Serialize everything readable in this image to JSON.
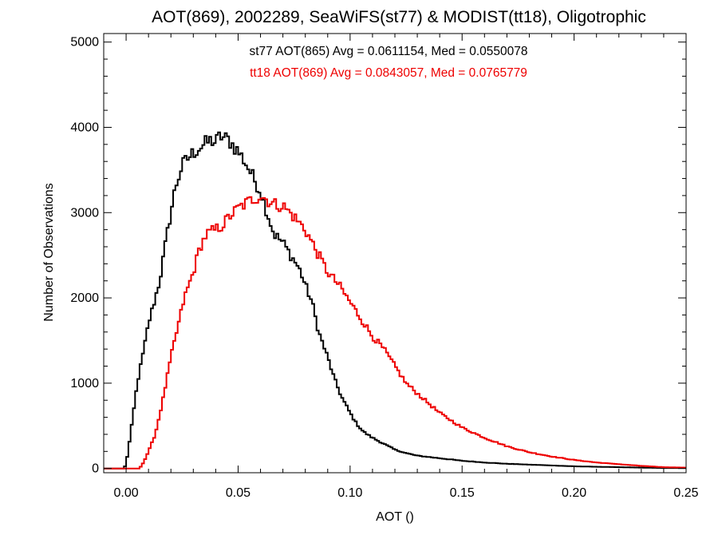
{
  "chart_data": {
    "type": "line",
    "title": "AOT(869), 2002289, SeaWiFS(st77) & MODIST(tt18), Oligotrophic",
    "xlabel": "AOT ()",
    "ylabel": "Number of Observations",
    "xlim": [
      -0.01,
      0.25
    ],
    "ylim": [
      -50,
      5100
    ],
    "x_ticks": [
      0.0,
      0.05,
      0.1,
      0.15,
      0.2,
      0.25
    ],
    "x_tick_labels": [
      "0.00",
      "0.05",
      "0.10",
      "0.15",
      "0.20",
      "0.25"
    ],
    "y_ticks": [
      0,
      1000,
      2000,
      3000,
      4000,
      5000
    ],
    "y_tick_labels": [
      "0",
      "1000",
      "2000",
      "3000",
      "4000",
      "5000"
    ],
    "grid": false,
    "step": "histogram",
    "bin_width": 0.001,
    "annotations": [
      {
        "text": "st77 AOT(865) Avg = 0.0611154, Med = 0.0550078",
        "color": "#000000"
      },
      {
        "text": "tt18 AOT(869) Avg = 0.0843057, Med = 0.0765779",
        "color": "#ee0000"
      }
    ],
    "series": [
      {
        "color": "#000000",
        "x": [
          -0.01,
          -0.001,
          0.0,
          0.002,
          0.005,
          0.008,
          0.01,
          0.012,
          0.015,
          0.018,
          0.02,
          0.022,
          0.025,
          0.028,
          0.03,
          0.032,
          0.035,
          0.038,
          0.04,
          0.042,
          0.044,
          0.046,
          0.048,
          0.05,
          0.053,
          0.056,
          0.06,
          0.063,
          0.066,
          0.07,
          0.073,
          0.076,
          0.078,
          0.08,
          0.083,
          0.086,
          0.09,
          0.093,
          0.096,
          0.1,
          0.103,
          0.106,
          0.11,
          0.115,
          0.12,
          0.125,
          0.13,
          0.14,
          0.15,
          0.16,
          0.17,
          0.18,
          0.19,
          0.2,
          0.21,
          0.22,
          0.23,
          0.24,
          0.25
        ],
        "y": [
          0,
          0,
          50,
          400,
          1000,
          1400,
          1700,
          1900,
          2200,
          2700,
          3000,
          3300,
          3550,
          3650,
          3700,
          3750,
          3800,
          3850,
          3820,
          3900,
          3870,
          3850,
          3780,
          3720,
          3600,
          3450,
          3250,
          3000,
          2750,
          2650,
          2520,
          2400,
          2300,
          2150,
          1950,
          1600,
          1300,
          1050,
          850,
          650,
          520,
          430,
          360,
          290,
          220,
          180,
          150,
          120,
          90,
          70,
          55,
          45,
          35,
          25,
          20,
          15,
          10,
          5,
          5
        ]
      },
      {
        "color": "#ee0000",
        "x": [
          -0.01,
          0.006,
          0.008,
          0.01,
          0.013,
          0.016,
          0.02,
          0.023,
          0.026,
          0.03,
          0.033,
          0.036,
          0.04,
          0.043,
          0.046,
          0.05,
          0.053,
          0.056,
          0.06,
          0.063,
          0.066,
          0.07,
          0.075,
          0.08,
          0.085,
          0.09,
          0.095,
          0.1,
          0.105,
          0.11,
          0.115,
          0.12,
          0.125,
          0.13,
          0.14,
          0.15,
          0.16,
          0.17,
          0.18,
          0.19,
          0.2,
          0.21,
          0.22,
          0.23,
          0.24,
          0.25
        ],
        "y": [
          0,
          0,
          80,
          200,
          400,
          750,
          1300,
          1650,
          2000,
          2300,
          2600,
          2750,
          2800,
          2850,
          2950,
          3050,
          3100,
          3150,
          3200,
          3150,
          3100,
          3080,
          2950,
          2800,
          2550,
          2300,
          2150,
          1950,
          1750,
          1550,
          1400,
          1200,
          1000,
          880,
          650,
          480,
          360,
          260,
          190,
          140,
          100,
          70,
          50,
          30,
          15,
          10
        ]
      }
    ]
  }
}
